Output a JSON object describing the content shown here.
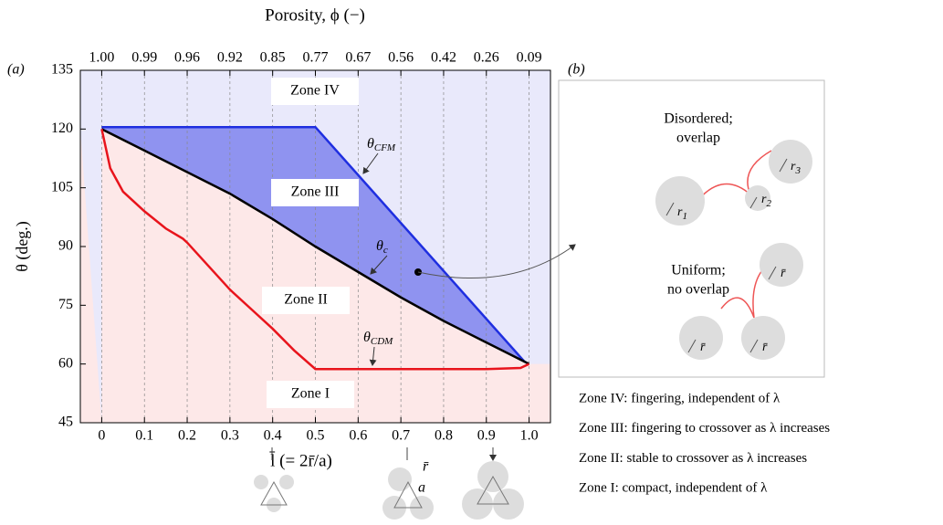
{
  "chart_data": {
    "type": "line",
    "panel_label": "(a)",
    "top_title": "Porosity, ϕ (−)",
    "x_label": "l̄ (= 2r̄/a)",
    "y_label": "θ (deg.)",
    "xlim": [
      -0.05,
      1.05
    ],
    "ylim": [
      45,
      135
    ],
    "xticks": [
      0,
      0.1,
      0.2,
      0.3,
      0.4,
      0.5,
      0.6,
      0.7,
      0.8,
      0.9,
      {
        "value": 1,
        "label": "1.0"
      }
    ],
    "top_ticks": [
      {
        "value": 0,
        "label": "1.00"
      },
      {
        "value": 0.1,
        "label": "0.99"
      },
      {
        "value": 0.2,
        "label": "0.96"
      },
      {
        "value": 0.3,
        "label": "0.92"
      },
      {
        "value": 0.4,
        "label": "0.85"
      },
      {
        "value": 0.5,
        "label": "0.77"
      },
      {
        "value": 0.6,
        "label": "0.67"
      },
      {
        "value": 0.7,
        "label": "0.56"
      },
      {
        "value": 0.8,
        "label": "0.42"
      },
      {
        "value": 0.9,
        "label": "0.26"
      },
      {
        "value": 1,
        "label": "0.09"
      }
    ],
    "yticks": [
      45,
      60,
      75,
      90,
      105,
      120,
      135
    ],
    "grid": true,
    "series": [
      {
        "label": "θ",
        "label_sub": "CFM",
        "color": "#1f2fe0",
        "x": [
          0,
          0.5,
          0.99
        ],
        "values": [
          120.5,
          120.5,
          60.5
        ]
      },
      {
        "label": "θ",
        "label_sub": "c",
        "color": "#000000",
        "x": [
          0,
          0.1,
          0.2,
          0.3,
          0.4,
          0.5,
          0.6,
          0.7,
          0.8,
          0.9,
          1.0
        ],
        "values": [
          120,
          114.5,
          109,
          103.5,
          97,
          90,
          83.5,
          77,
          71,
          65.5,
          60
        ]
      },
      {
        "label": "θ",
        "label_sub": "CDM",
        "color": "#e8141c",
        "x": [
          0,
          0.02,
          0.05,
          0.1,
          0.15,
          0.19,
          0.2,
          0.25,
          0.3,
          0.35,
          0.4,
          0.45,
          0.5,
          0.9,
          0.98,
          1.0
        ],
        "values": [
          120,
          110,
          104,
          99,
          94.6,
          92,
          91,
          85,
          79,
          74,
          69,
          63.5,
          58.7,
          58.7,
          59,
          60
        ]
      }
    ],
    "zones": [
      "Zone IV",
      "Zone III",
      "Zone II",
      "Zone I"
    ]
  },
  "panel_b": {
    "label": "(b)",
    "groups": [
      {
        "title": [
          "Disordered;",
          "overlap"
        ],
        "radii": [
          {
            "text": "r",
            "sub": "1"
          },
          {
            "text": "r",
            "sub": "2"
          },
          {
            "text": "r",
            "sub": "3"
          }
        ]
      },
      {
        "title": [
          "Uniform;",
          "no overlap"
        ],
        "radii": [
          {
            "text": "r̄",
            "sub": ""
          },
          {
            "text": "r̄",
            "sub": ""
          },
          {
            "text": "r̄",
            "sub": ""
          }
        ]
      }
    ]
  },
  "icon_labels": [
    "r̄",
    "a"
  ],
  "zone_notes": [
    "Zone IV: fingering, independent of λ",
    "Zone III: fingering to crossover as λ increases",
    "Zone II: stable to crossover as λ increases",
    "Zone I: compact, independent of λ"
  ]
}
